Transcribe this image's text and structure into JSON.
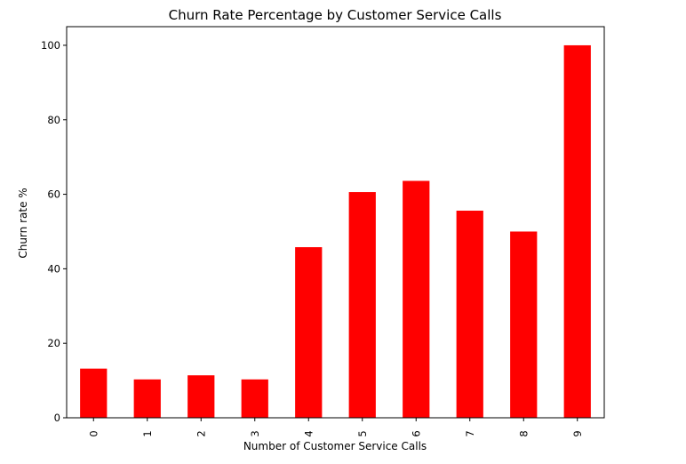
{
  "chart_data": {
    "type": "bar",
    "title": "Churn Rate Percentage by Customer Service Calls",
    "xlabel": "Number of Customer Service Calls",
    "ylabel": "Churn rate %",
    "categories": [
      "0",
      "1",
      "2",
      "3",
      "4",
      "5",
      "6",
      "7",
      "8",
      "9"
    ],
    "values": [
      13.2,
      10.3,
      11.4,
      10.3,
      45.8,
      60.6,
      63.6,
      55.6,
      50.0,
      100.0
    ],
    "ylim": [
      0,
      105
    ],
    "yticks": [
      "0",
      "20",
      "40",
      "60",
      "80",
      "100"
    ],
    "bar_color": "#ff0000",
    "grid": false,
    "legend": "none"
  }
}
